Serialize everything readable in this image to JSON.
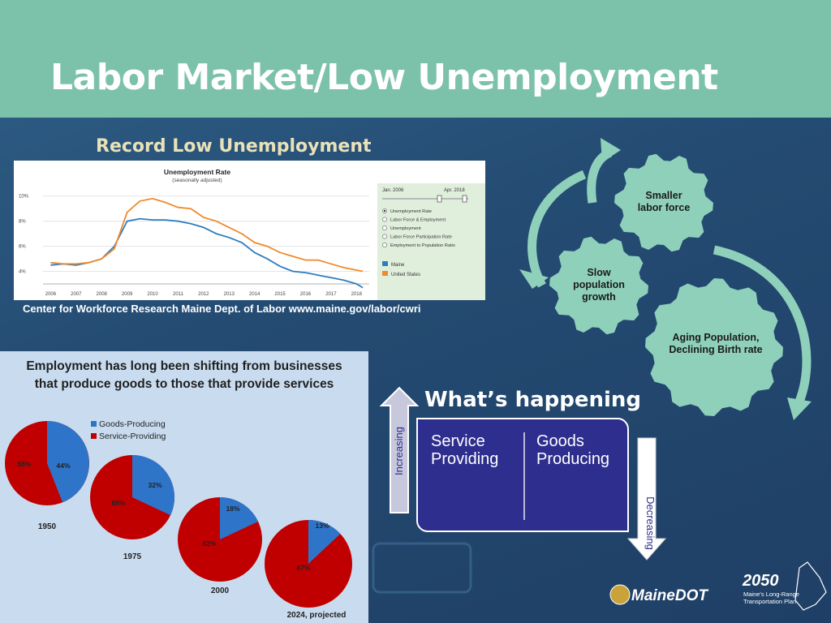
{
  "slide": {
    "title": "Labor Market/Low Unemployment",
    "colors": {
      "header": "#7cc2aa",
      "background": "#2a5580",
      "gear": "#8fd0bb",
      "box": "#2e2e8f",
      "maine": "#2e7dbf",
      "us": "#f08a2c",
      "goods": "#2e75c9",
      "service": "#c00000"
    }
  },
  "unemployment": {
    "heading": "Record Low Unemployment",
    "source": "Center for Workforce Research Maine Dept. of Labor www.maine.gov/labor/cwri",
    "controls": {
      "range_start": "Jan. 2006",
      "range_end": "Apr. 2018",
      "options": [
        "Unemployment Rate",
        "Labor Force & Employment",
        "Unemployment",
        "Labor Force Participation Rate",
        "Employment to Population Ratio"
      ],
      "selected": "Unemployment Rate",
      "legend": [
        "Maine",
        "United States"
      ]
    }
  },
  "chart_data": [
    {
      "type": "line",
      "title": "Unemployment Rate",
      "subtitle": "(seasonally adjusted)",
      "x": [
        2006,
        2006.5,
        2007,
        2007.5,
        2008,
        2008.5,
        2009,
        2009.5,
        2010,
        2010.5,
        2011,
        2011.5,
        2012,
        2012.5,
        2013,
        2013.5,
        2014,
        2014.5,
        2015,
        2015.5,
        2016,
        2016.5,
        2017,
        2017.5,
        2018,
        2018.25
      ],
      "xticks": [
        "2006",
        "2007",
        "2008",
        "2009",
        "2010",
        "2011",
        "2012",
        "2013",
        "2014",
        "2015",
        "2016",
        "2017",
        "2018"
      ],
      "ylim": [
        3,
        10.5
      ],
      "yticks": [
        "10%",
        "8%",
        "6%",
        "4%"
      ],
      "series": [
        {
          "name": "Maine",
          "color": "#2e7dbf",
          "values": [
            4.5,
            4.6,
            4.5,
            4.7,
            5.0,
            6.0,
            8.0,
            8.2,
            8.1,
            8.1,
            8.0,
            7.8,
            7.5,
            7.0,
            6.7,
            6.3,
            5.5,
            5.0,
            4.4,
            4.0,
            3.9,
            3.7,
            3.5,
            3.3,
            3.0,
            2.7
          ]
        },
        {
          "name": "United States",
          "color": "#f08a2c",
          "values": [
            4.7,
            4.6,
            4.6,
            4.7,
            5.0,
            5.8,
            8.7,
            9.6,
            9.8,
            9.5,
            9.1,
            9.0,
            8.3,
            8.0,
            7.5,
            7.0,
            6.3,
            6.0,
            5.5,
            5.2,
            4.9,
            4.9,
            4.6,
            4.3,
            4.1,
            4.0
          ]
        }
      ]
    },
    {
      "type": "pie",
      "title": "Employment has long been shifting from businesses that produce goods to those that provide services",
      "legend": [
        "Goods-Producing",
        "Service-Providing"
      ],
      "categories": [
        "1950",
        "1975",
        "2000",
        "2024, projected"
      ],
      "series": [
        {
          "name": "Goods-Producing",
          "values": [
            44,
            32,
            18,
            13
          ]
        },
        {
          "name": "Service-Providing",
          "values": [
            56,
            68,
            82,
            87
          ]
        }
      ]
    }
  ],
  "employment": {
    "title_line1": "Employment has long been shifting from businesses",
    "title_line2": "that produce goods to those that provide services"
  },
  "happening": {
    "title": "What’s happening",
    "increasing_label": "Increasing",
    "decreasing_label": "Decreasing",
    "left_line1": "Service",
    "left_line2": "Providing",
    "right_line1": "Goods",
    "right_line2": "Producing"
  },
  "gears": {
    "smaller_line1": "Smaller",
    "smaller_line2": "labor force",
    "slow_line1": "Slow",
    "slow_line2": "population",
    "slow_line3": "growth",
    "aging_line1": "Aging Population,",
    "aging_line2": "Declining Birth rate"
  },
  "logos": {
    "mainedot": "MaineDOT",
    "plan_year": "2050",
    "plan_line1": "Maine's Long-Range",
    "plan_line2": "Transportation Plan"
  }
}
